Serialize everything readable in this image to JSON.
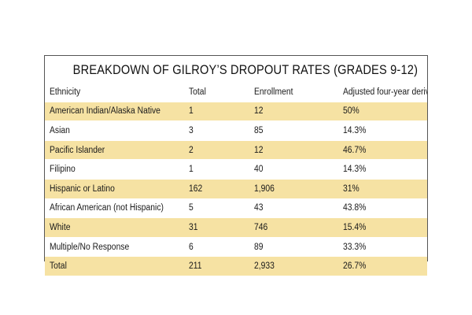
{
  "chart_data": {
    "type": "table",
    "title": "BREAKDOWN OF GILROY’S DROPOUT RATES (GRADES 9-12)",
    "columns": [
      "Ethnicity",
      "Total",
      "Enrollment",
      "Adjusted four-year derived rate"
    ],
    "rows": [
      [
        "American Indian/Alaska Native",
        "1",
        "12",
        "50%"
      ],
      [
        "Asian",
        "3",
        "85",
        "14.3%"
      ],
      [
        "Pacific Islander",
        "2",
        "12",
        "46.7%"
      ],
      [
        "Filipino",
        "1",
        "40",
        "14.3%"
      ],
      [
        "Hispanic or Latino",
        "162",
        "1,906",
        "31%"
      ],
      [
        "African American (not Hispanic)",
        "5",
        "43",
        "43.8%"
      ],
      [
        "White",
        "31",
        "746",
        "15.4%"
      ],
      [
        "Multiple/No Response",
        "6",
        "89",
        "33.3%"
      ],
      [
        "Total",
        "211",
        "2,933",
        "26.7%"
      ]
    ]
  },
  "colors": {
    "shaded_row": "#f6e2a3",
    "border": "#555555"
  }
}
